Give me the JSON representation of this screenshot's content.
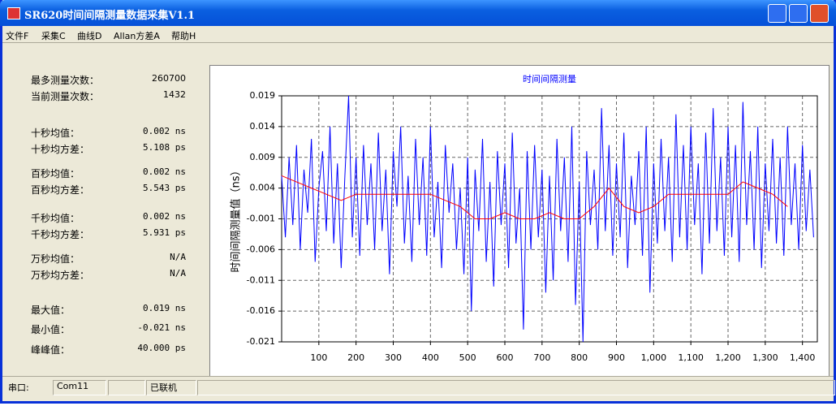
{
  "window": {
    "title": "SR620时间间隔测量数据采集V1.1"
  },
  "menu": [
    "文件F",
    "采集C",
    "曲线D",
    "Allan方差A",
    "帮助H"
  ],
  "stats": [
    {
      "label": "最多测量次数：",
      "value": 260700
    },
    {
      "label": "当前测量次数：",
      "value": 1432
    },
    {
      "label": "十秒均值：",
      "value": "0.002 ns"
    },
    {
      "label": "十秒均方差：",
      "value": "5.108 ps"
    },
    {
      "label": "百秒均值：",
      "value": "0.002 ns"
    },
    {
      "label": "百秒均方差：",
      "value": "5.543 ps"
    },
    {
      "label": "千秒均值：",
      "value": "0.002 ns"
    },
    {
      "label": "千秒均方差：",
      "value": "5.931 ps"
    },
    {
      "label": "万秒均值：",
      "value": "N/A"
    },
    {
      "label": "万秒均方差：",
      "value": "N/A"
    },
    {
      "label": "最大值：",
      "value": "0.019 ns"
    },
    {
      "label": "最小值：",
      "value": "-0.021 ns"
    },
    {
      "label": "峰峰值：",
      "value": "40.000 ps"
    }
  ],
  "status": {
    "port_label": "串口:",
    "port": "Com11",
    "state": "已联机"
  },
  "chart_data": {
    "type": "line",
    "title": "时间间隔测量",
    "y_label": "时间间隔测量值（ns）",
    "grid": true,
    "xlim": [
      0,
      1440
    ],
    "ylim": [
      -0.021,
      0.019
    ],
    "xticks": [
      100,
      200,
      300,
      400,
      500,
      600,
      700,
      800,
      900,
      {
        "value": 1000,
        "label": "1,000"
      },
      {
        "value": 1100,
        "label": "1,100"
      },
      {
        "value": 1200,
        "label": "1,200"
      },
      {
        "value": 1300,
        "label": "1,300"
      },
      {
        "value": 1400,
        "label": "1,400"
      }
    ],
    "yticks": [
      0.019,
      0.014,
      0.009,
      0.004,
      -0.001,
      -0.006,
      -0.011,
      -0.016,
      -0.021
    ],
    "x": [
      0,
      10,
      20,
      30,
      40,
      50,
      60,
      70,
      80,
      90,
      100,
      110,
      120,
      130,
      140,
      150,
      160,
      170,
      180,
      190,
      200,
      210,
      220,
      230,
      240,
      250,
      260,
      270,
      280,
      290,
      300,
      310,
      320,
      330,
      340,
      350,
      360,
      370,
      380,
      390,
      400,
      410,
      420,
      430,
      440,
      450,
      460,
      470,
      480,
      490,
      500,
      510,
      520,
      530,
      540,
      550,
      560,
      570,
      580,
      590,
      600,
      610,
      620,
      630,
      640,
      650,
      660,
      670,
      680,
      690,
      700,
      710,
      720,
      730,
      740,
      750,
      760,
      770,
      780,
      790,
      800,
      810,
      820,
      830,
      840,
      850,
      860,
      870,
      880,
      890,
      900,
      910,
      920,
      930,
      940,
      950,
      960,
      970,
      980,
      990,
      1000,
      1010,
      1020,
      1030,
      1040,
      1050,
      1060,
      1070,
      1080,
      1090,
      1100,
      1110,
      1120,
      1130,
      1140,
      1150,
      1160,
      1170,
      1180,
      1190,
      1200,
      1210,
      1220,
      1230,
      1240,
      1250,
      1260,
      1270,
      1280,
      1290,
      1300,
      1310,
      1320,
      1330,
      1340,
      1350,
      1360,
      1370,
      1380,
      1390,
      1400,
      1410,
      1420,
      1430
    ],
    "series": [
      {
        "color": "#0000ff",
        "values": [
          0.006,
          -0.004,
          0.009,
          -0.002,
          0.011,
          -0.006,
          0.007,
          0.0,
          0.012,
          -0.008,
          0.004,
          0.01,
          -0.003,
          0.014,
          -0.005,
          0.008,
          -0.009,
          0.006,
          0.019,
          -0.004,
          0.009,
          -0.007,
          0.011,
          -0.002,
          0.008,
          -0.006,
          0.013,
          -0.003,
          0.007,
          -0.01,
          0.01,
          0.001,
          0.014,
          -0.005,
          0.006,
          -0.008,
          0.012,
          -0.002,
          0.009,
          -0.007,
          0.014,
          -0.004,
          0.005,
          -0.009,
          0.011,
          0.0,
          0.008,
          -0.006,
          0.004,
          -0.01,
          0.009,
          -0.016,
          0.007,
          -0.003,
          0.012,
          -0.008,
          0.005,
          -0.012,
          0.01,
          -0.002,
          0.008,
          -0.009,
          0.013,
          -0.005,
          0.004,
          -0.019,
          0.01,
          -0.006,
          0.011,
          -0.004,
          0.007,
          -0.013,
          0.006,
          -0.011,
          0.012,
          -0.003,
          0.009,
          -0.008,
          0.014,
          -0.015,
          0.005,
          -0.021,
          0.01,
          -0.002,
          0.007,
          -0.006,
          0.017,
          -0.003,
          0.011,
          -0.007,
          0.008,
          -0.004,
          0.013,
          -0.009,
          0.006,
          -0.002,
          0.01,
          -0.007,
          0.014,
          -0.013,
          0.008,
          -0.005,
          0.012,
          -0.003,
          0.009,
          -0.008,
          0.016,
          -0.004,
          0.011,
          -0.006,
          0.014,
          -0.002,
          0.008,
          -0.01,
          0.013,
          -0.005,
          0.017,
          -0.003,
          0.009,
          -0.007,
          0.014,
          -0.004,
          0.011,
          -0.008,
          0.018,
          -0.002,
          0.01,
          -0.006,
          0.014,
          -0.009,
          0.008,
          -0.003,
          0.012,
          -0.005,
          0.009,
          -0.007,
          0.014,
          -0.002,
          0.008,
          -0.006,
          0.011,
          -0.003,
          0.007,
          -0.004
        ]
      },
      {
        "color": "#ff0000",
        "x": [
          0,
          40,
          80,
          120,
          160,
          200,
          240,
          280,
          320,
          360,
          400,
          440,
          480,
          520,
          560,
          600,
          640,
          680,
          720,
          760,
          800,
          840,
          880,
          920,
          960,
          1000,
          1040,
          1080,
          1120,
          1160,
          1200,
          1240,
          1280,
          1320,
          1360
        ],
        "values": [
          0.006,
          0.005,
          0.004,
          0.003,
          0.002,
          0.003,
          0.003,
          0.003,
          0.003,
          0.003,
          0.003,
          0.002,
          0.001,
          -0.001,
          -0.001,
          0.0,
          -0.001,
          -0.001,
          0.0,
          -0.001,
          -0.001,
          0.001,
          0.004,
          0.001,
          0.0,
          0.001,
          0.003,
          0.003,
          0.003,
          0.003,
          0.003,
          0.005,
          0.004,
          0.003,
          0.001
        ]
      }
    ]
  }
}
